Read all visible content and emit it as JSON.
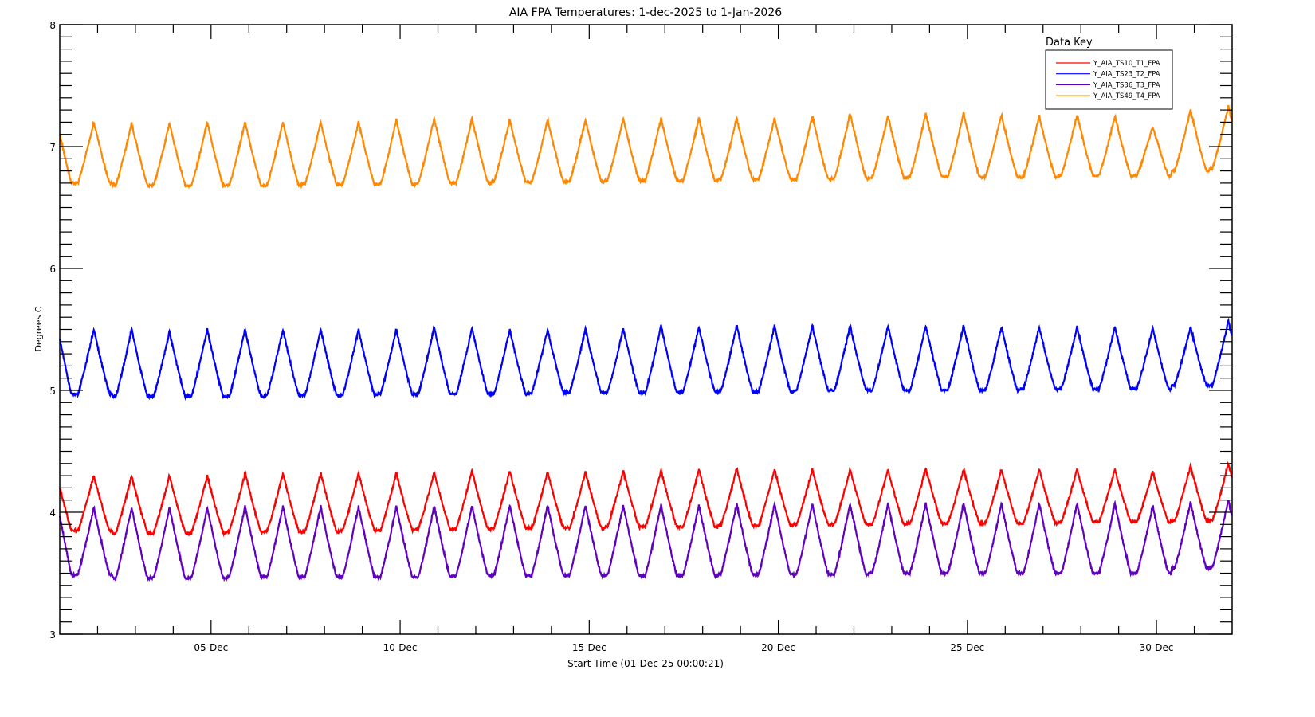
{
  "chart_data": {
    "type": "line",
    "title": "AIA FPA Temperatures: 1-dec-2025 to 1-Jan-2026",
    "xlabel": "Start Time (01-Dec-25 00:00:21)",
    "ylabel": "Degrees C",
    "xlim_days": [
      0,
      31
    ],
    "ylim": [
      3,
      8
    ],
    "yticks": [
      "3",
      "4",
      "5",
      "6",
      "7",
      "8"
    ],
    "xticks": [
      {
        "day": 4,
        "label": "05-Dec"
      },
      {
        "day": 9,
        "label": "10-Dec"
      },
      {
        "day": 14,
        "label": "15-Dec"
      },
      {
        "day": 19,
        "label": "20-Dec"
      },
      {
        "day": 24,
        "label": "25-Dec"
      },
      {
        "day": 29,
        "label": "30-Dec"
      }
    ],
    "legend": {
      "title": "Data Key",
      "placement": "top-right"
    },
    "first_peak_day": 0.9,
    "period_days": 1,
    "series": [
      {
        "name": "Y_AIA_TS10_T1_FPA",
        "color": "#ff0000",
        "start": 4.2,
        "peaks": [
          4.3,
          4.3,
          4.3,
          4.3,
          4.32,
          4.32,
          4.32,
          4.32,
          4.32,
          4.33,
          4.34,
          4.34,
          4.33,
          4.33,
          4.34,
          4.34,
          4.35,
          4.36,
          4.35,
          4.35,
          4.35,
          4.35,
          4.36,
          4.35,
          4.35,
          4.35,
          4.35,
          4.35,
          4.33,
          4.38,
          4.4
        ],
        "troughs": [
          3.85,
          3.83,
          3.83,
          3.83,
          3.84,
          3.84,
          3.84,
          3.85,
          3.85,
          3.86,
          3.86,
          3.87,
          3.87,
          3.87,
          3.88,
          3.88,
          3.88,
          3.89,
          3.89,
          3.9,
          3.9,
          3.9,
          3.91,
          3.91,
          3.91,
          3.91,
          3.92,
          3.92,
          3.92,
          3.93,
          3.93
        ]
      },
      {
        "name": "Y_AIA_TS23_T2_FPA",
        "color": "#0000ff",
        "start": 5.42,
        "peaks": [
          5.5,
          5.5,
          5.48,
          5.5,
          5.5,
          5.5,
          5.5,
          5.5,
          5.5,
          5.52,
          5.51,
          5.5,
          5.5,
          5.5,
          5.51,
          5.53,
          5.52,
          5.53,
          5.53,
          5.53,
          5.53,
          5.53,
          5.53,
          5.53,
          5.52,
          5.52,
          5.52,
          5.52,
          5.51,
          5.52,
          5.57
        ],
        "troughs": [
          4.97,
          4.95,
          4.95,
          4.95,
          4.95,
          4.96,
          4.96,
          4.96,
          4.97,
          4.97,
          4.97,
          4.97,
          4.98,
          4.98,
          4.98,
          4.98,
          4.99,
          4.99,
          4.99,
          5.0,
          5.0,
          5.0,
          5.0,
          5.0,
          5.0,
          5.01,
          5.01,
          5.01,
          5.01,
          5.04,
          5.04
        ]
      },
      {
        "name": "Y_AIA_TS36_T3_FPA",
        "color": "#6000c0",
        "start": 3.97,
        "peaks": [
          4.04,
          4.04,
          4.04,
          4.04,
          4.05,
          4.05,
          4.05,
          4.05,
          4.05,
          4.05,
          4.06,
          4.06,
          4.06,
          4.06,
          4.06,
          4.06,
          4.06,
          4.07,
          4.07,
          4.07,
          4.07,
          4.07,
          4.07,
          4.07,
          4.07,
          4.07,
          4.07,
          4.07,
          4.05,
          4.08,
          4.1
        ],
        "troughs": [
          3.49,
          3.46,
          3.46,
          3.46,
          3.47,
          3.47,
          3.47,
          3.47,
          3.47,
          3.47,
          3.48,
          3.48,
          3.48,
          3.48,
          3.48,
          3.48,
          3.48,
          3.49,
          3.49,
          3.49,
          3.49,
          3.5,
          3.5,
          3.5,
          3.5,
          3.5,
          3.5,
          3.5,
          3.5,
          3.54,
          3.55
        ]
      },
      {
        "name": "Y_AIA_TS49_T4_FPA",
        "color": "#ff8800",
        "start": 7.1,
        "peaks": [
          7.2,
          7.19,
          7.19,
          7.2,
          7.2,
          7.2,
          7.2,
          7.2,
          7.22,
          7.23,
          7.23,
          7.22,
          7.22,
          7.22,
          7.23,
          7.23,
          7.23,
          7.23,
          7.23,
          7.25,
          7.27,
          7.25,
          7.27,
          7.27,
          7.26,
          7.25,
          7.26,
          7.25,
          7.16,
          7.3,
          7.33
        ],
        "troughs": [
          6.7,
          6.68,
          6.68,
          6.68,
          6.68,
          6.68,
          6.69,
          6.69,
          6.69,
          6.7,
          6.7,
          6.71,
          6.71,
          6.71,
          6.72,
          6.72,
          6.72,
          6.73,
          6.73,
          6.73,
          6.74,
          6.74,
          6.75,
          6.75,
          6.75,
          6.75,
          6.76,
          6.76,
          6.76,
          6.8,
          6.82
        ]
      }
    ]
  }
}
